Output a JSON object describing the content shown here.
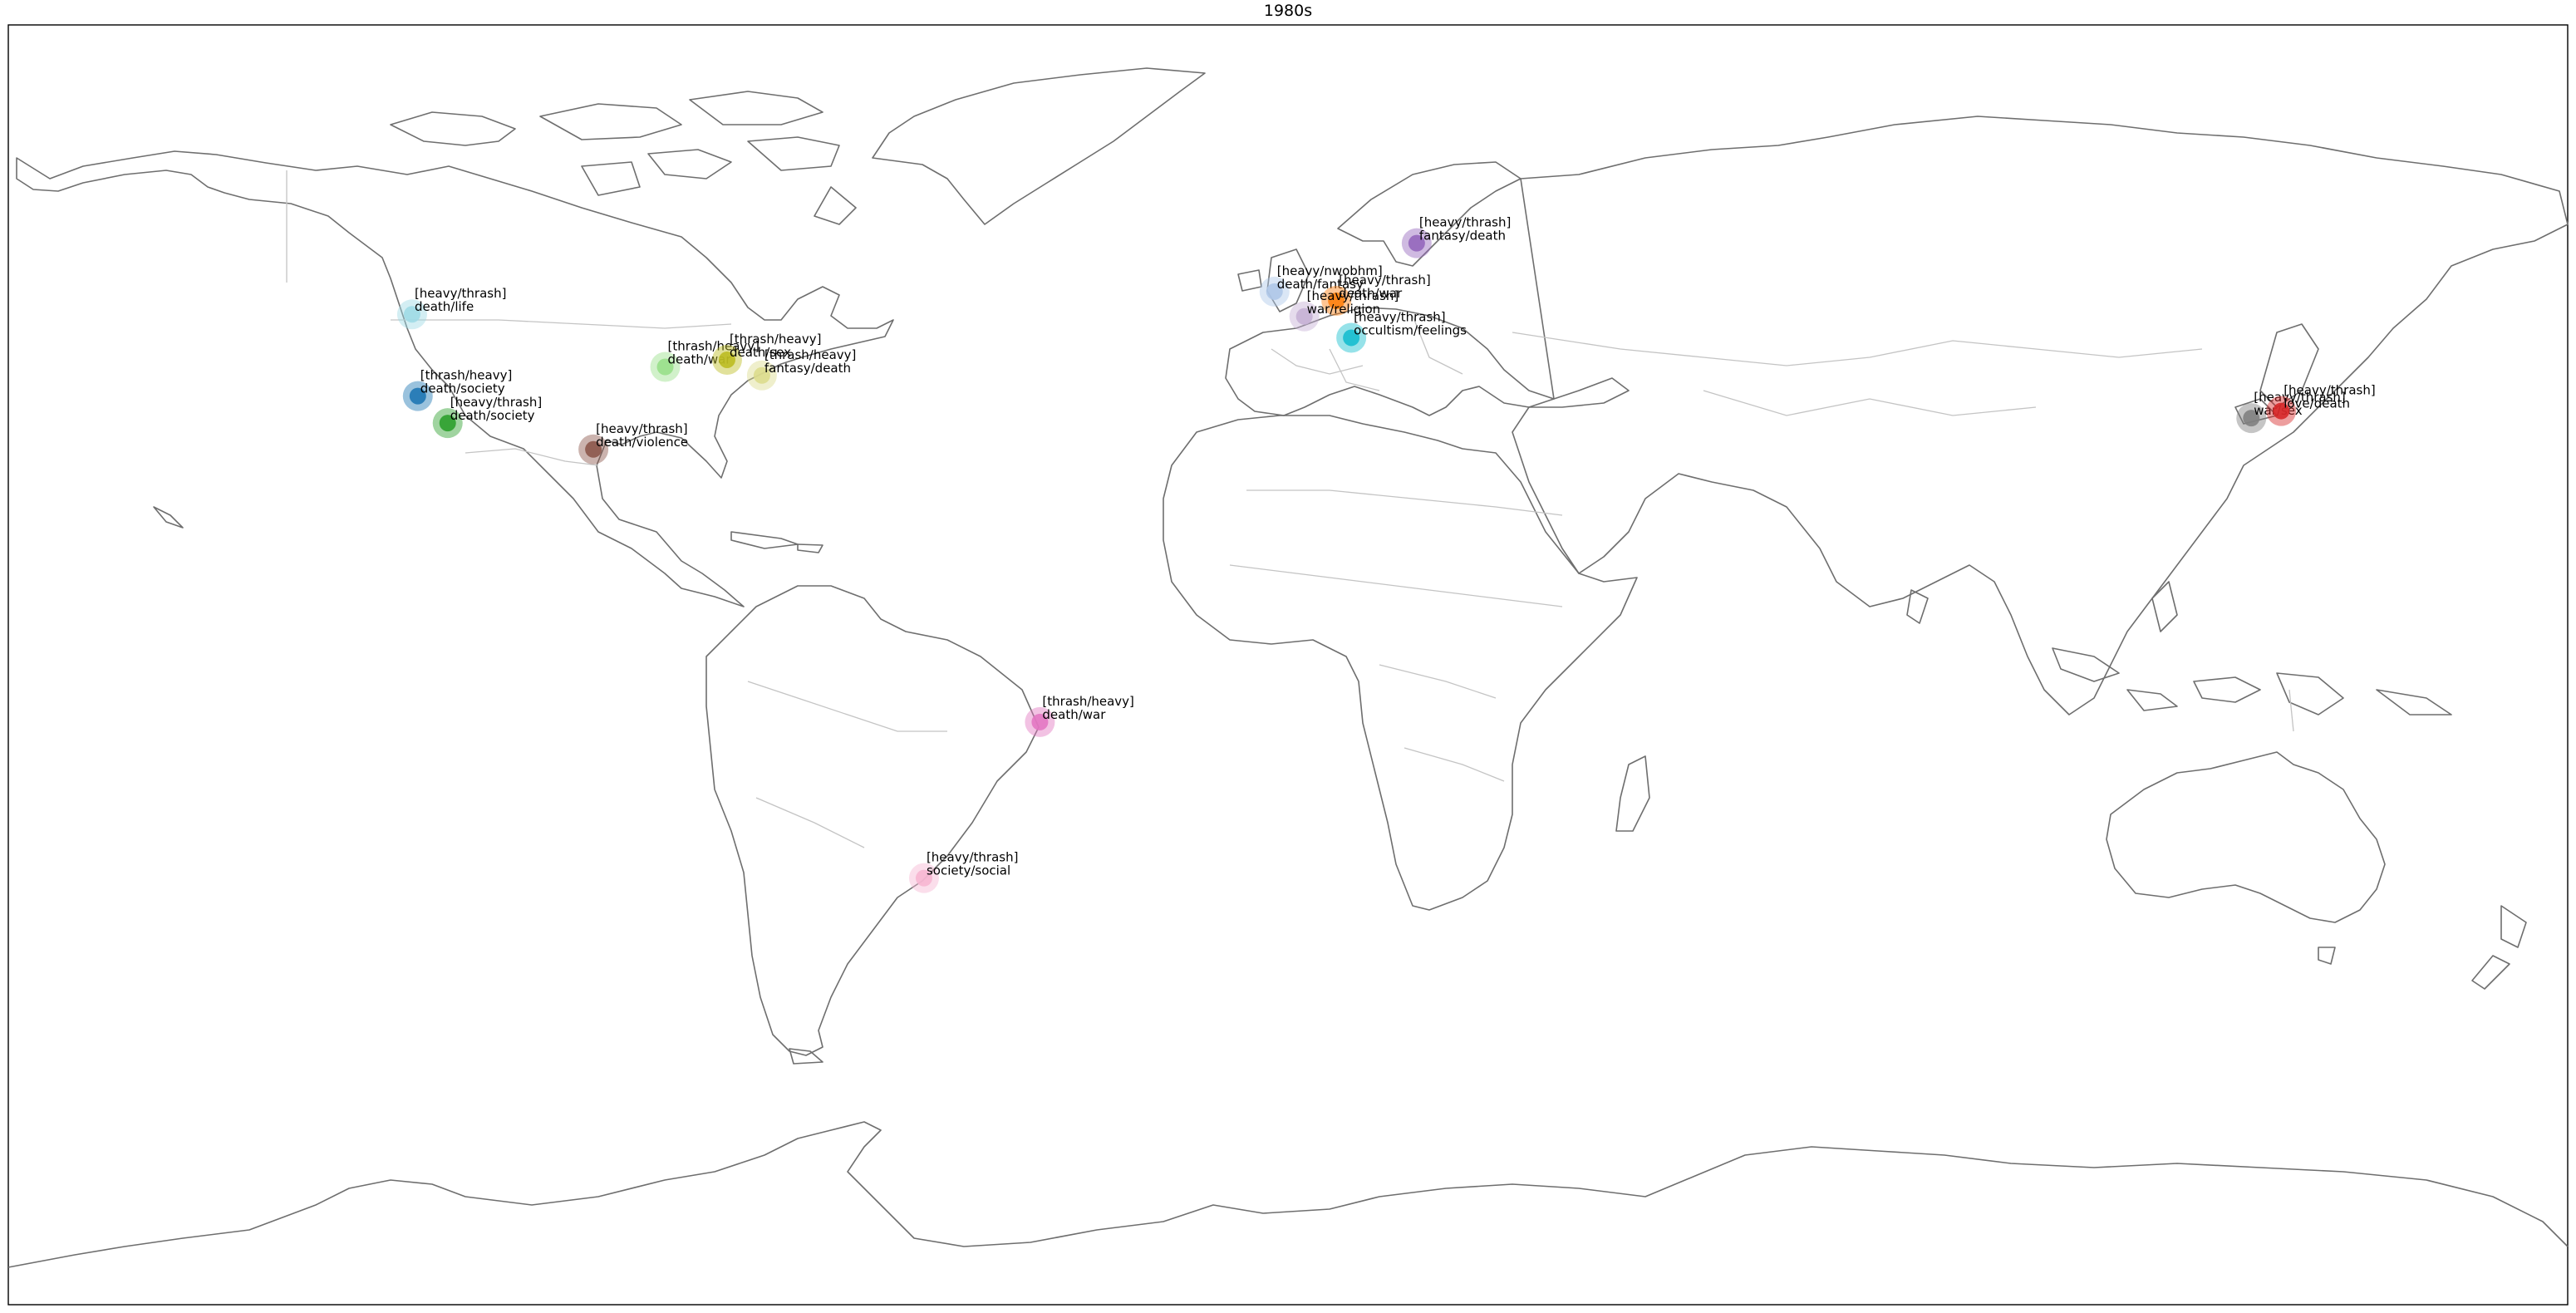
{
  "title": "1980s",
  "markers": [
    {
      "lat": 49.3,
      "lon": -123.2,
      "color": "#9edae5",
      "label": [
        "[heavy/thrash]",
        "death/life"
      ]
    },
    {
      "lat": 37.8,
      "lon": -122.4,
      "color": "#1f77b4",
      "label": [
        "[thrash/heavy]",
        "death/society"
      ]
    },
    {
      "lat": 34.0,
      "lon": -118.2,
      "color": "#2ca02c",
      "label": [
        "[heavy/thrash]",
        "death/society"
      ]
    },
    {
      "lat": 41.9,
      "lon": -87.6,
      "color": "#98df8a",
      "label": [
        "[thrash/heavy]",
        "death/war"
      ]
    },
    {
      "lat": 42.9,
      "lon": -78.9,
      "color": "#bcbd22",
      "label": [
        "[thrash/heavy]",
        "death/sex"
      ]
    },
    {
      "lat": 40.7,
      "lon": -74.0,
      "color": "#dbdb8d",
      "label": [
        "[thrash/heavy]",
        "fantasy/death"
      ]
    },
    {
      "lat": 30.3,
      "lon": -97.7,
      "color": "#8c564b",
      "label": [
        "[heavy/thrash]",
        "death/violence"
      ]
    },
    {
      "lat": -8.05,
      "lon": -34.9,
      "color": "#e377c2",
      "label": [
        "[thrash/heavy]",
        "death/war"
      ]
    },
    {
      "lat": -30.0,
      "lon": -51.2,
      "color": "#f7b6d2",
      "label": [
        "[heavy/thrash]",
        "society/social"
      ]
    },
    {
      "lat": 52.5,
      "lon": -1.9,
      "color": "#aec7e8",
      "label": [
        "[heavy/nwobhm]",
        "death/fantasy"
      ]
    },
    {
      "lat": 51.2,
      "lon": 6.8,
      "color": "#ff7f0e",
      "label": [
        "[heavy/thrash]",
        "death/war"
      ]
    },
    {
      "lat": 49.0,
      "lon": 2.3,
      "color": "#c5b0d5",
      "label": [
        "[heavy/thrash]",
        "war/religion"
      ]
    },
    {
      "lat": 59.3,
      "lon": 18.1,
      "color": "#9467bd",
      "label": [
        "[heavy/thrash]",
        "fantasy/death"
      ]
    },
    {
      "lat": 46.0,
      "lon": 8.9,
      "color": "#17becf",
      "label": [
        "[heavy/thrash]",
        "occultism/feelings"
      ]
    },
    {
      "lat": 34.7,
      "lon": 135.5,
      "color": "#7f7f7f",
      "label": [
        "[heavy/thrash]",
        "war/sex"
      ]
    },
    {
      "lat": 35.7,
      "lon": 139.7,
      "color": "#d62728",
      "label": [
        "[heavy/thrash]",
        "love/death"
      ]
    }
  ]
}
